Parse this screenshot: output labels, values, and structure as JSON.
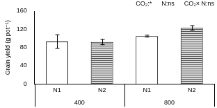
{
  "chart_data": {
    "type": "bar",
    "categories": [
      "N1",
      "N2",
      "N1",
      "N2"
    ],
    "groups": [
      "400",
      "800"
    ],
    "values": [
      93,
      92,
      105,
      123
    ],
    "errors": [
      15,
      6,
      2,
      5
    ],
    "colors": [
      "#ffffff",
      "#d9d9d9",
      "#ffffff",
      "#d9d9d9"
    ],
    "y_label": "Grain yield (g pot⁻¹)",
    "annotations": [
      "CO₂:*",
      "N:ns",
      "CO₂× N:ns"
    ],
    "ylim": [
      0,
      160
    ],
    "yticks": [
      0,
      40,
      80,
      120,
      160
    ],
    "grid": false
  }
}
